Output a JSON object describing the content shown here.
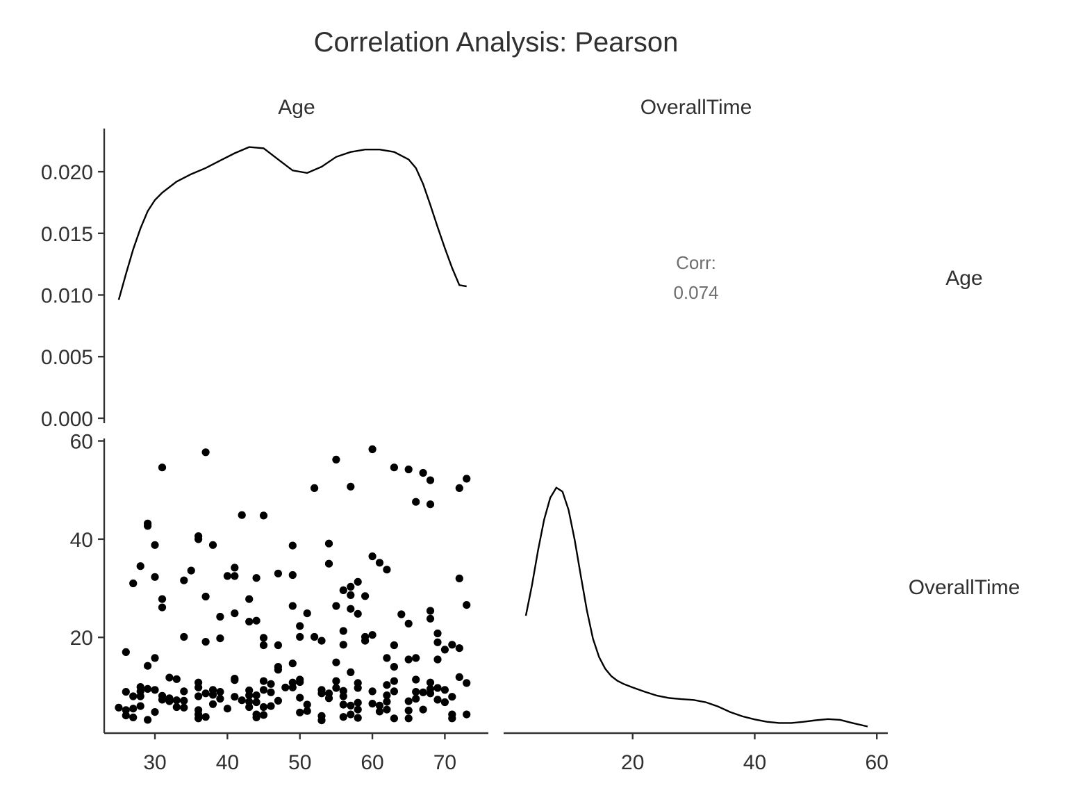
{
  "chart_data": {
    "type": "scatter-matrix",
    "title": "Correlation Analysis: Pearson",
    "variables": [
      "Age",
      "OverallTime"
    ],
    "column_strips": [
      "Age",
      "OverallTime"
    ],
    "row_strips": [
      "Age",
      "OverallTime"
    ],
    "correlation": {
      "label": "Corr:",
      "value": "0.074"
    },
    "ticks": {
      "density_y": [
        "0.000",
        "0.005",
        "0.010",
        "0.015",
        "0.020"
      ],
      "density_y_values": [
        0.0,
        0.005,
        0.01,
        0.015,
        0.02
      ],
      "scatter_y": [
        "20",
        "40",
        "60"
      ],
      "scatter_y_values": [
        20,
        40,
        60
      ],
      "age_x": [
        "30",
        "40",
        "50",
        "60",
        "70"
      ],
      "age_x_values": [
        30,
        40,
        50,
        60,
        70
      ],
      "time_x": [
        "20",
        "40",
        "60"
      ],
      "time_x_values": [
        20,
        40,
        60
      ]
    },
    "age_density": {
      "xlim": [
        23,
        76
      ],
      "ylim": [
        -0.0004,
        0.0235
      ],
      "x": [
        25,
        26,
        27,
        28,
        29,
        30,
        31,
        33,
        35,
        37,
        39,
        41,
        43,
        45,
        47,
        49,
        51,
        53,
        55,
        57,
        59,
        61,
        63,
        65,
        66,
        67,
        68,
        69,
        70,
        71,
        72,
        73
      ],
      "y": [
        0.0096,
        0.0117,
        0.0137,
        0.0154,
        0.0168,
        0.0177,
        0.0183,
        0.0192,
        0.0198,
        0.0203,
        0.0209,
        0.0215,
        0.022,
        0.0219,
        0.021,
        0.0201,
        0.0199,
        0.0204,
        0.0212,
        0.0216,
        0.0218,
        0.0218,
        0.0216,
        0.021,
        0.0203,
        0.019,
        0.0173,
        0.0155,
        0.0138,
        0.0122,
        0.0108,
        0.0107
      ]
    },
    "time_density": {
      "xlim": [
        0,
        61
      ],
      "ylim": [
        0,
        0.0755
      ],
      "x": [
        2.5,
        3.5,
        4.5,
        5.5,
        6.5,
        7.5,
        8.5,
        9.5,
        10.5,
        11.5,
        12.5,
        13.5,
        14.5,
        15.5,
        16.5,
        17.5,
        18.5,
        20,
        22,
        24,
        26,
        28,
        30,
        32,
        34,
        36,
        38,
        40,
        42,
        44,
        46,
        48,
        50,
        52,
        54,
        56,
        58.5
      ],
      "y": [
        0.0301,
        0.0379,
        0.0468,
        0.0547,
        0.0603,
        0.0629,
        0.0619,
        0.0572,
        0.0495,
        0.0404,
        0.0315,
        0.0242,
        0.0195,
        0.0165,
        0.0146,
        0.0134,
        0.0126,
        0.0117,
        0.0106,
        0.0096,
        0.009,
        0.0087,
        0.0085,
        0.0079,
        0.0068,
        0.0054,
        0.0043,
        0.0035,
        0.0029,
        0.0026,
        0.0026,
        0.0029,
        0.0033,
        0.0036,
        0.0034,
        0.0026,
        0.0017
      ]
    },
    "scatter": {
      "xlim": [
        23,
        76
      ],
      "ylim": [
        0.5,
        60.5
      ],
      "points": [
        [
          25,
          5.7
        ],
        [
          26,
          17
        ],
        [
          26,
          8.9
        ],
        [
          26,
          5.2
        ],
        [
          26,
          4.1
        ],
        [
          27,
          31
        ],
        [
          27,
          8
        ],
        [
          27,
          5.5
        ],
        [
          27,
          3.7
        ],
        [
          28,
          34.5
        ],
        [
          28,
          9.9
        ],
        [
          28,
          9
        ],
        [
          28,
          8
        ],
        [
          28,
          6
        ],
        [
          29,
          43.2
        ],
        [
          29,
          42.7
        ],
        [
          29,
          14.2
        ],
        [
          29,
          9.5
        ],
        [
          29,
          3.2
        ],
        [
          30,
          38.8
        ],
        [
          30,
          32.3
        ],
        [
          30,
          15.8
        ],
        [
          30,
          9.3
        ],
        [
          30,
          4.8
        ],
        [
          31,
          54.6
        ],
        [
          31,
          27.8
        ],
        [
          31,
          26.1
        ],
        [
          31,
          8.1
        ],
        [
          31,
          7.3
        ],
        [
          32,
          11.8
        ],
        [
          32,
          7.6
        ],
        [
          32,
          7
        ],
        [
          33,
          11.5
        ],
        [
          33,
          7.2
        ],
        [
          33,
          5.8
        ],
        [
          34,
          31.6
        ],
        [
          34,
          20.1
        ],
        [
          34,
          9
        ],
        [
          34,
          7.1
        ],
        [
          34,
          5.7
        ],
        [
          35,
          33.6
        ],
        [
          36,
          40.6
        ],
        [
          36,
          40
        ],
        [
          36,
          10.8
        ],
        [
          36,
          9.8
        ],
        [
          36,
          8
        ],
        [
          36,
          5.2
        ],
        [
          36,
          4.3
        ],
        [
          36,
          3.5
        ],
        [
          37,
          57.7
        ],
        [
          37,
          28.3
        ],
        [
          37,
          19.1
        ],
        [
          37,
          8.6
        ],
        [
          37,
          3.8
        ],
        [
          38,
          38.8
        ],
        [
          38,
          9.3
        ],
        [
          38,
          8.3
        ],
        [
          38,
          6.4
        ],
        [
          39,
          24.2
        ],
        [
          39,
          19.8
        ],
        [
          39,
          8.9
        ],
        [
          39,
          7.5
        ],
        [
          40,
          32.5
        ],
        [
          40,
          5.5
        ],
        [
          41,
          34.2
        ],
        [
          41,
          32.5
        ],
        [
          41,
          24.9
        ],
        [
          41,
          11.6
        ],
        [
          41,
          11.3
        ],
        [
          41,
          7.9
        ],
        [
          42,
          44.9
        ],
        [
          42,
          7.2
        ],
        [
          43,
          27.8
        ],
        [
          43,
          23.2
        ],
        [
          43,
          9.2
        ],
        [
          43,
          8.2
        ],
        [
          43,
          6.9
        ],
        [
          43,
          5.8
        ],
        [
          44,
          32.1
        ],
        [
          44,
          23.4
        ],
        [
          44,
          8.2
        ],
        [
          44,
          6.8
        ],
        [
          44,
          4.3
        ],
        [
          44,
          3.7
        ],
        [
          45,
          44.8
        ],
        [
          45,
          19.9
        ],
        [
          45,
          18.4
        ],
        [
          45,
          11.1
        ],
        [
          45,
          9.3
        ],
        [
          45,
          5.8
        ],
        [
          45,
          4.2
        ],
        [
          46,
          10.5
        ],
        [
          46,
          8.8
        ],
        [
          46,
          6
        ],
        [
          47,
          33
        ],
        [
          47,
          18.4
        ],
        [
          47,
          14
        ],
        [
          47,
          13.4
        ],
        [
          47,
          7.1
        ],
        [
          48,
          9.8
        ],
        [
          49,
          38.7
        ],
        [
          49,
          32.7
        ],
        [
          49,
          26.4
        ],
        [
          49,
          14.7
        ],
        [
          49,
          10.8
        ],
        [
          49,
          9.8
        ],
        [
          50,
          22.3
        ],
        [
          50,
          20.1
        ],
        [
          50,
          11.4
        ],
        [
          50,
          10.9
        ],
        [
          50,
          7.7
        ],
        [
          50,
          4.7
        ],
        [
          51,
          24.9
        ],
        [
          51,
          6.3
        ],
        [
          51,
          5
        ],
        [
          52,
          50.4
        ],
        [
          52,
          20.1
        ],
        [
          53,
          19.3
        ],
        [
          53,
          9.3
        ],
        [
          53,
          8.6
        ],
        [
          53,
          4
        ],
        [
          53,
          3.1
        ],
        [
          54,
          39.1
        ],
        [
          54,
          35
        ],
        [
          54,
          8.6
        ],
        [
          54,
          7.6
        ],
        [
          55,
          56.2
        ],
        [
          55,
          26.4
        ],
        [
          55,
          14.9
        ],
        [
          55,
          11.1
        ],
        [
          55,
          9.7
        ],
        [
          56,
          29.6
        ],
        [
          56,
          21.3
        ],
        [
          56,
          18.5
        ],
        [
          56,
          9.1
        ],
        [
          56,
          8
        ],
        [
          56,
          6.3
        ],
        [
          56,
          3.8
        ],
        [
          57,
          50.7
        ],
        [
          57,
          30.3
        ],
        [
          57,
          28.6
        ],
        [
          57,
          25.8
        ],
        [
          57,
          12.9
        ],
        [
          57,
          6.1
        ],
        [
          57,
          4.3
        ],
        [
          58,
          31.3
        ],
        [
          58,
          24.8
        ],
        [
          58,
          10.7
        ],
        [
          58,
          9.7
        ],
        [
          58,
          6.7
        ],
        [
          58,
          5.3
        ],
        [
          58,
          3.6
        ],
        [
          59,
          28.4
        ],
        [
          59,
          20.1
        ],
        [
          59,
          19.3
        ],
        [
          60,
          58.3
        ],
        [
          60,
          36.5
        ],
        [
          60,
          20.5
        ],
        [
          60,
          9
        ],
        [
          60,
          6.5
        ],
        [
          61,
          35.2
        ],
        [
          61,
          6.1
        ],
        [
          61,
          4.9
        ],
        [
          62,
          33.8
        ],
        [
          62,
          15.8
        ],
        [
          62,
          10.3
        ],
        [
          62,
          8.2
        ],
        [
          62,
          6.9
        ],
        [
          62,
          5.3
        ],
        [
          63,
          54.6
        ],
        [
          63,
          18.4
        ],
        [
          63,
          14
        ],
        [
          63,
          11.1
        ],
        [
          63,
          9
        ],
        [
          63,
          3.5
        ],
        [
          64,
          24.7
        ],
        [
          65,
          54.2
        ],
        [
          65,
          22.8
        ],
        [
          65,
          15.5
        ],
        [
          65,
          7
        ],
        [
          65,
          5.1
        ],
        [
          65,
          3.5
        ],
        [
          66,
          47.6
        ],
        [
          66,
          15.8
        ],
        [
          66,
          11.4
        ],
        [
          66,
          8.9
        ],
        [
          66,
          7.5
        ],
        [
          67,
          53.5
        ],
        [
          67,
          8.8
        ],
        [
          67,
          5.3
        ],
        [
          68,
          52
        ],
        [
          68,
          47.1
        ],
        [
          68,
          25.4
        ],
        [
          68,
          23.8
        ],
        [
          68,
          10.8
        ],
        [
          68,
          9.5
        ],
        [
          68,
          8.6
        ],
        [
          69,
          20.8
        ],
        [
          69,
          19
        ],
        [
          69,
          15.5
        ],
        [
          69,
          9.7
        ],
        [
          69,
          7.3
        ],
        [
          70,
          17.5
        ],
        [
          70,
          9.3
        ],
        [
          70,
          6.8
        ],
        [
          71,
          18.5
        ],
        [
          71,
          7.9
        ],
        [
          71,
          4.3
        ],
        [
          71,
          3.5
        ],
        [
          72,
          50.4
        ],
        [
          72,
          32
        ],
        [
          72,
          17.8
        ],
        [
          72,
          11.9
        ],
        [
          73,
          52.3
        ],
        [
          73,
          26.6
        ],
        [
          73,
          10.7
        ],
        [
          73,
          4.3
        ]
      ]
    }
  }
}
